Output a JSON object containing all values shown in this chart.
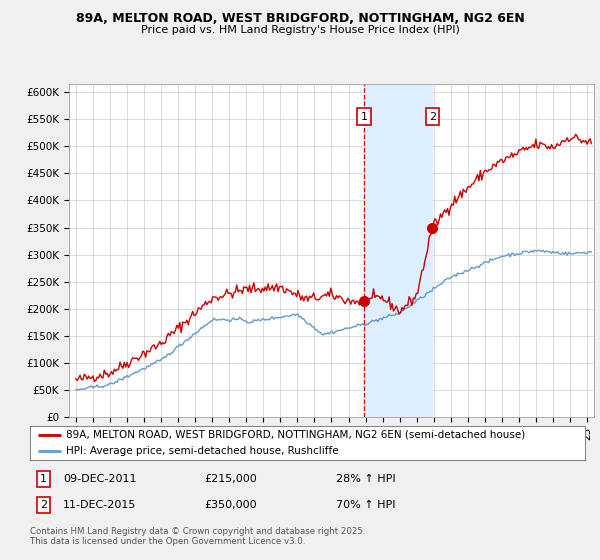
{
  "title1": "89A, MELTON ROAD, WEST BRIDGFORD, NOTTINGHAM, NG2 6EN",
  "title2": "Price paid vs. HM Land Registry's House Price Index (HPI)",
  "ylabel_ticks": [
    "£0",
    "£50K",
    "£100K",
    "£150K",
    "£200K",
    "£250K",
    "£300K",
    "£350K",
    "£400K",
    "£450K",
    "£500K",
    "£550K",
    "£600K"
  ],
  "ytick_values": [
    0,
    50000,
    100000,
    150000,
    200000,
    250000,
    300000,
    350000,
    400000,
    450000,
    500000,
    550000,
    600000
  ],
  "xmin": 1994.6,
  "xmax": 2025.4,
  "ymin": 0,
  "ymax": 615000,
  "sale1_date": 2011.92,
  "sale1_price": 215000,
  "sale1_label": "1",
  "sale2_date": 2015.92,
  "sale2_price": 350000,
  "sale2_label": "2",
  "line1_color": "#cc0000",
  "line2_color": "#6699cc",
  "highlight_color": "#ddeeff",
  "dashed_color": "#cc0000",
  "legend_line1": "89A, MELTON ROAD, WEST BRIDGFORD, NOTTINGHAM, NG2 6EN (semi-detached house)",
  "legend_line2": "HPI: Average price, semi-detached house, Rushcliffe",
  "footnote": "Contains HM Land Registry data © Crown copyright and database right 2025.\nThis data is licensed under the Open Government Licence v3.0.",
  "background_color": "#f0f0f0",
  "plot_background": "#ffffff",
  "grid_color": "#cccccc"
}
